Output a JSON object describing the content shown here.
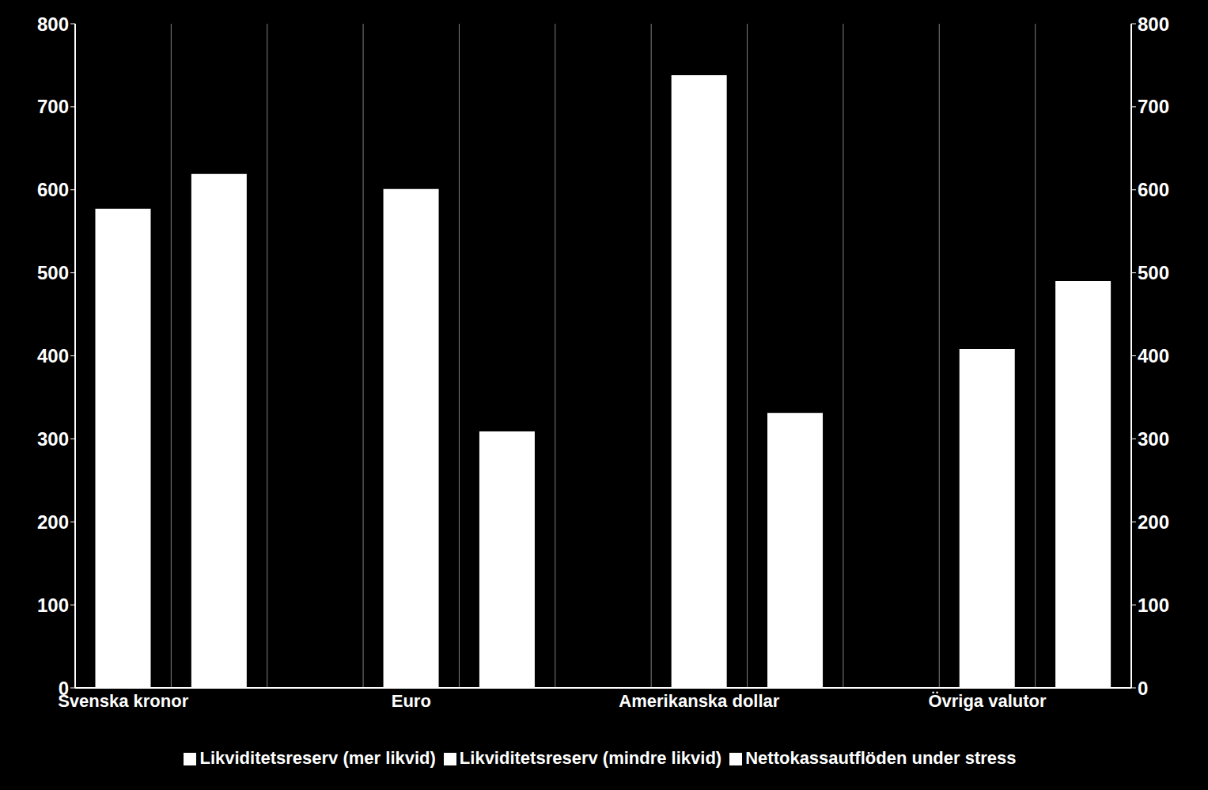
{
  "chart_data": {
    "type": "bar",
    "stacked": true,
    "grid": true,
    "legend": "bottom",
    "categories": [
      "Svenska kronor",
      null,
      null,
      "Euro",
      null,
      null,
      "Amerikanska dollar",
      null,
      null,
      "Övriga valutor",
      null
    ],
    "ylim": [
      0,
      800
    ],
    "yticks": [
      0,
      100,
      200,
      300,
      400,
      500,
      600,
      700,
      800
    ],
    "series": [
      {
        "name": "Likviditetsreserv (mer likvid)",
        "color": "#ffffff",
        "values": [
          577,
          null,
          null,
          601,
          null,
          null,
          738,
          null,
          null,
          408,
          null
        ]
      },
      {
        "name": "Likviditetsreserv (mindre likvid)",
        "color": "#ffffff",
        "values": [
          null,
          null,
          null,
          null,
          null,
          null,
          null,
          null,
          null,
          null,
          null
        ]
      },
      {
        "name": "Nettokassautflöden under stress",
        "color": "#ffffff",
        "values": [
          null,
          619,
          null,
          null,
          309,
          null,
          null,
          331,
          null,
          null,
          490
        ]
      }
    ]
  }
}
